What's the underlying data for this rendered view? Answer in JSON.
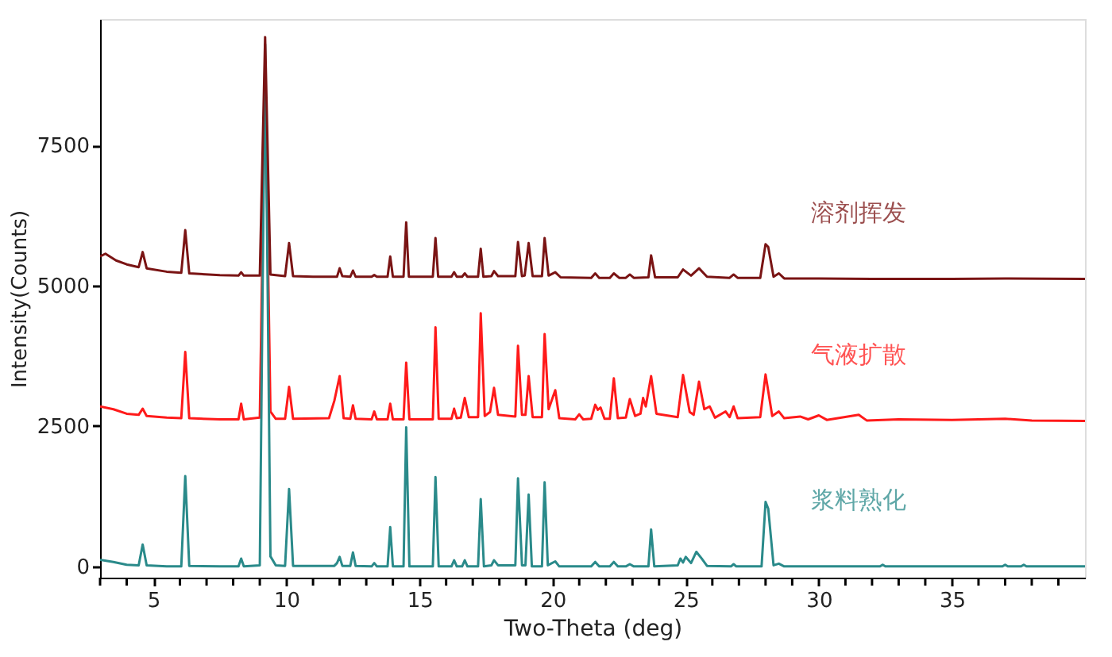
{
  "chart_data": {
    "type": "line",
    "xlabel": "Two-Theta (deg)",
    "ylabel": "Intensity(Counts)",
    "xlim": [
      3,
      40
    ],
    "ylim": [
      -200,
      9750
    ],
    "xticks": [
      {
        "value": 3,
        "label": null
      },
      {
        "value": 4,
        "label": null
      },
      5,
      {
        "value": 6,
        "label": null
      },
      {
        "value": 7,
        "label": null
      },
      {
        "value": 8,
        "label": null
      },
      {
        "value": 9,
        "label": null
      },
      10,
      {
        "value": 11,
        "label": null
      },
      {
        "value": 12,
        "label": null
      },
      {
        "value": 13,
        "label": null
      },
      {
        "value": 14,
        "label": null
      },
      15,
      {
        "value": 16,
        "label": null
      },
      {
        "value": 17,
        "label": null
      },
      {
        "value": 18,
        "label": null
      },
      {
        "value": 19,
        "label": null
      },
      20,
      {
        "value": 21,
        "label": null
      },
      {
        "value": 22,
        "label": null
      },
      {
        "value": 23,
        "label": null
      },
      {
        "value": 24,
        "label": null
      },
      25,
      {
        "value": 26,
        "label": null
      },
      {
        "value": 27,
        "label": null
      },
      {
        "value": 28,
        "label": null
      },
      {
        "value": 29,
        "label": null
      },
      30,
      {
        "value": 31,
        "label": null
      },
      {
        "value": 32,
        "label": null
      },
      {
        "value": 33,
        "label": null
      },
      {
        "value": 34,
        "label": null
      },
      35,
      {
        "value": 36,
        "label": null
      },
      {
        "value": 37,
        "label": null
      },
      {
        "value": 38,
        "label": null
      },
      {
        "value": 39,
        "label": null
      }
    ],
    "yticks": [
      0,
      2500,
      5000,
      7500
    ],
    "grid": false,
    "legend": false,
    "marker": "none",
    "line_style": "solid",
    "series": [
      {
        "name": "气液扩散",
        "color": "#ff1a1a",
        "x": [
          3.0,
          3.5,
          4.0,
          4.45,
          4.6,
          4.75,
          5.5,
          6.05,
          6.2,
          6.35,
          7.5,
          8.2,
          8.3,
          8.4,
          9.0,
          9.2,
          9.4,
          9.6,
          9.95,
          10.1,
          10.25,
          11.6,
          11.8,
          12.0,
          12.15,
          12.4,
          12.5,
          12.6,
          13.2,
          13.3,
          13.4,
          13.8,
          13.9,
          14.0,
          14.4,
          14.5,
          14.62,
          15.5,
          15.6,
          15.72,
          16.2,
          16.3,
          16.4,
          16.55,
          16.7,
          16.85,
          17.2,
          17.3,
          17.45,
          17.65,
          17.8,
          17.95,
          18.6,
          18.7,
          18.85,
          18.98,
          19.1,
          19.25,
          19.6,
          19.7,
          19.85,
          20.1,
          20.25,
          20.85,
          21.0,
          21.15,
          21.45,
          21.6,
          21.7,
          21.8,
          21.95,
          22.15,
          22.3,
          22.45,
          22.75,
          22.9,
          23.1,
          23.3,
          23.4,
          23.5,
          23.7,
          23.9,
          24.7,
          24.9,
          25.15,
          25.3,
          25.5,
          25.7,
          25.9,
          26.1,
          26.5,
          26.65,
          26.8,
          26.95,
          27.8,
          28.0,
          28.25,
          28.5,
          28.7,
          29.3,
          29.6,
          30.0,
          30.3,
          31.5,
          31.8,
          33,
          35,
          37,
          38,
          40
        ],
        "values": [
          2850,
          2800,
          2720,
          2700,
          2810,
          2680,
          2650,
          2640,
          3820,
          2640,
          2620,
          2620,
          2900,
          2620,
          2650,
          8700,
          2760,
          2630,
          2630,
          3200,
          2630,
          2640,
          2950,
          3390,
          2640,
          2630,
          2870,
          2630,
          2620,
          2760,
          2620,
          2620,
          2900,
          2620,
          2620,
          3630,
          2620,
          2620,
          4260,
          2630,
          2630,
          2810,
          2640,
          2650,
          3000,
          2660,
          2660,
          4510,
          2680,
          2750,
          3180,
          2700,
          2670,
          3930,
          2700,
          2700,
          3390,
          2660,
          2660,
          4140,
          2800,
          3140,
          2640,
          2620,
          2710,
          2620,
          2630,
          2880,
          2790,
          2830,
          2630,
          2630,
          3350,
          2640,
          2650,
          2980,
          2680,
          2720,
          3000,
          2850,
          3390,
          2720,
          2660,
          3410,
          2750,
          2700,
          3290,
          2800,
          2850,
          2650,
          2760,
          2660,
          2850,
          2640,
          2660,
          3420,
          2680,
          2760,
          2640,
          2670,
          2620,
          2690,
          2610,
          2700,
          2600,
          2620,
          2610,
          2630,
          2600,
          2590
        ]
      },
      {
        "name": "浆料熟化",
        "color": "#2a8a8a",
        "x": [
          3.0,
          3.5,
          4.0,
          4.45,
          4.6,
          4.75,
          5.5,
          6.05,
          6.2,
          6.35,
          7.5,
          8.2,
          8.3,
          8.4,
          9.0,
          9.2,
          9.4,
          9.6,
          9.95,
          10.1,
          10.25,
          11.8,
          11.9,
          12.0,
          12.1,
          12.4,
          12.5,
          12.6,
          13.2,
          13.3,
          13.4,
          13.8,
          13.9,
          14.0,
          14.4,
          14.5,
          14.62,
          15.5,
          15.6,
          15.72,
          16.2,
          16.3,
          16.4,
          16.6,
          16.7,
          16.8,
          17.2,
          17.3,
          17.42,
          17.7,
          17.8,
          17.95,
          18.6,
          18.7,
          18.85,
          18.98,
          19.1,
          19.22,
          19.6,
          19.7,
          19.82,
          20.1,
          20.25,
          21.45,
          21.6,
          21.75,
          22.15,
          22.3,
          22.45,
          22.75,
          22.9,
          23.05,
          23.6,
          23.7,
          23.82,
          24.7,
          24.8,
          24.9,
          25.0,
          25.2,
          25.4,
          25.6,
          25.8,
          26.7,
          26.8,
          26.9,
          27.85,
          28.0,
          28.1,
          28.3,
          28.5,
          28.7,
          32.3,
          32.4,
          32.5,
          36.9,
          37.0,
          37.1,
          37.6,
          37.7,
          37.8,
          40
        ],
        "values": [
          120,
          80,
          30,
          20,
          390,
          20,
          0,
          0,
          1610,
          10,
          0,
          0,
          140,
          0,
          20,
          9300,
          180,
          20,
          10,
          1380,
          10,
          10,
          60,
          170,
          10,
          10,
          250,
          10,
          0,
          60,
          0,
          0,
          700,
          0,
          0,
          2480,
          0,
          0,
          1590,
          0,
          0,
          110,
          0,
          0,
          110,
          0,
          0,
          1200,
          0,
          20,
          110,
          20,
          20,
          1570,
          20,
          20,
          1280,
          0,
          0,
          1500,
          20,
          90,
          0,
          0,
          80,
          0,
          0,
          80,
          0,
          0,
          40,
          0,
          0,
          660,
          0,
          20,
          140,
          70,
          170,
          60,
          260,
          140,
          10,
          0,
          40,
          0,
          0,
          1150,
          1030,
          20,
          50,
          0,
          0,
          30,
          0,
          0,
          30,
          0,
          0,
          30,
          0,
          0
        ]
      },
      {
        "name": "溶剂挥发",
        "color": "#7a1414",
        "x": [
          3.0,
          3.2,
          3.6,
          4.0,
          4.45,
          4.6,
          4.75,
          5.5,
          6.05,
          6.2,
          6.35,
          7.5,
          8.2,
          8.3,
          8.4,
          9.0,
          9.2,
          9.4,
          9.95,
          10.1,
          10.25,
          11.0,
          11.9,
          12.0,
          12.1,
          12.4,
          12.5,
          12.6,
          13.2,
          13.3,
          13.4,
          13.8,
          13.9,
          14.0,
          14.4,
          14.5,
          14.6,
          15.5,
          15.6,
          15.7,
          16.2,
          16.3,
          16.4,
          16.6,
          16.7,
          16.8,
          17.2,
          17.3,
          17.4,
          17.7,
          17.8,
          17.95,
          18.6,
          18.7,
          18.85,
          18.95,
          19.1,
          19.25,
          19.6,
          19.7,
          19.85,
          20.1,
          20.3,
          21.45,
          21.6,
          21.75,
          22.15,
          22.3,
          22.5,
          22.75,
          22.9,
          23.05,
          23.6,
          23.7,
          23.85,
          24.7,
          24.9,
          25.2,
          25.5,
          25.8,
          26.65,
          26.8,
          26.95,
          27.8,
          28.0,
          28.1,
          28.3,
          28.5,
          28.7,
          30,
          32,
          35,
          37,
          40
        ],
        "values": [
          5520,
          5570,
          5450,
          5380,
          5330,
          5600,
          5310,
          5250,
          5230,
          5990,
          5220,
          5190,
          5180,
          5240,
          5180,
          5180,
          9430,
          5200,
          5170,
          5760,
          5170,
          5160,
          5160,
          5310,
          5170,
          5160,
          5270,
          5160,
          5160,
          5190,
          5160,
          5160,
          5520,
          5160,
          5160,
          6130,
          5160,
          5160,
          5850,
          5160,
          5160,
          5240,
          5160,
          5160,
          5220,
          5160,
          5160,
          5660,
          5160,
          5170,
          5260,
          5170,
          5170,
          5780,
          5170,
          5180,
          5760,
          5170,
          5170,
          5850,
          5180,
          5240,
          5150,
          5140,
          5220,
          5140,
          5140,
          5220,
          5140,
          5140,
          5200,
          5140,
          5150,
          5540,
          5150,
          5150,
          5290,
          5180,
          5310,
          5160,
          5140,
          5200,
          5140,
          5140,
          5740,
          5690,
          5160,
          5220,
          5130,
          5130,
          5120,
          5120,
          5130,
          5120
        ]
      }
    ]
  }
}
